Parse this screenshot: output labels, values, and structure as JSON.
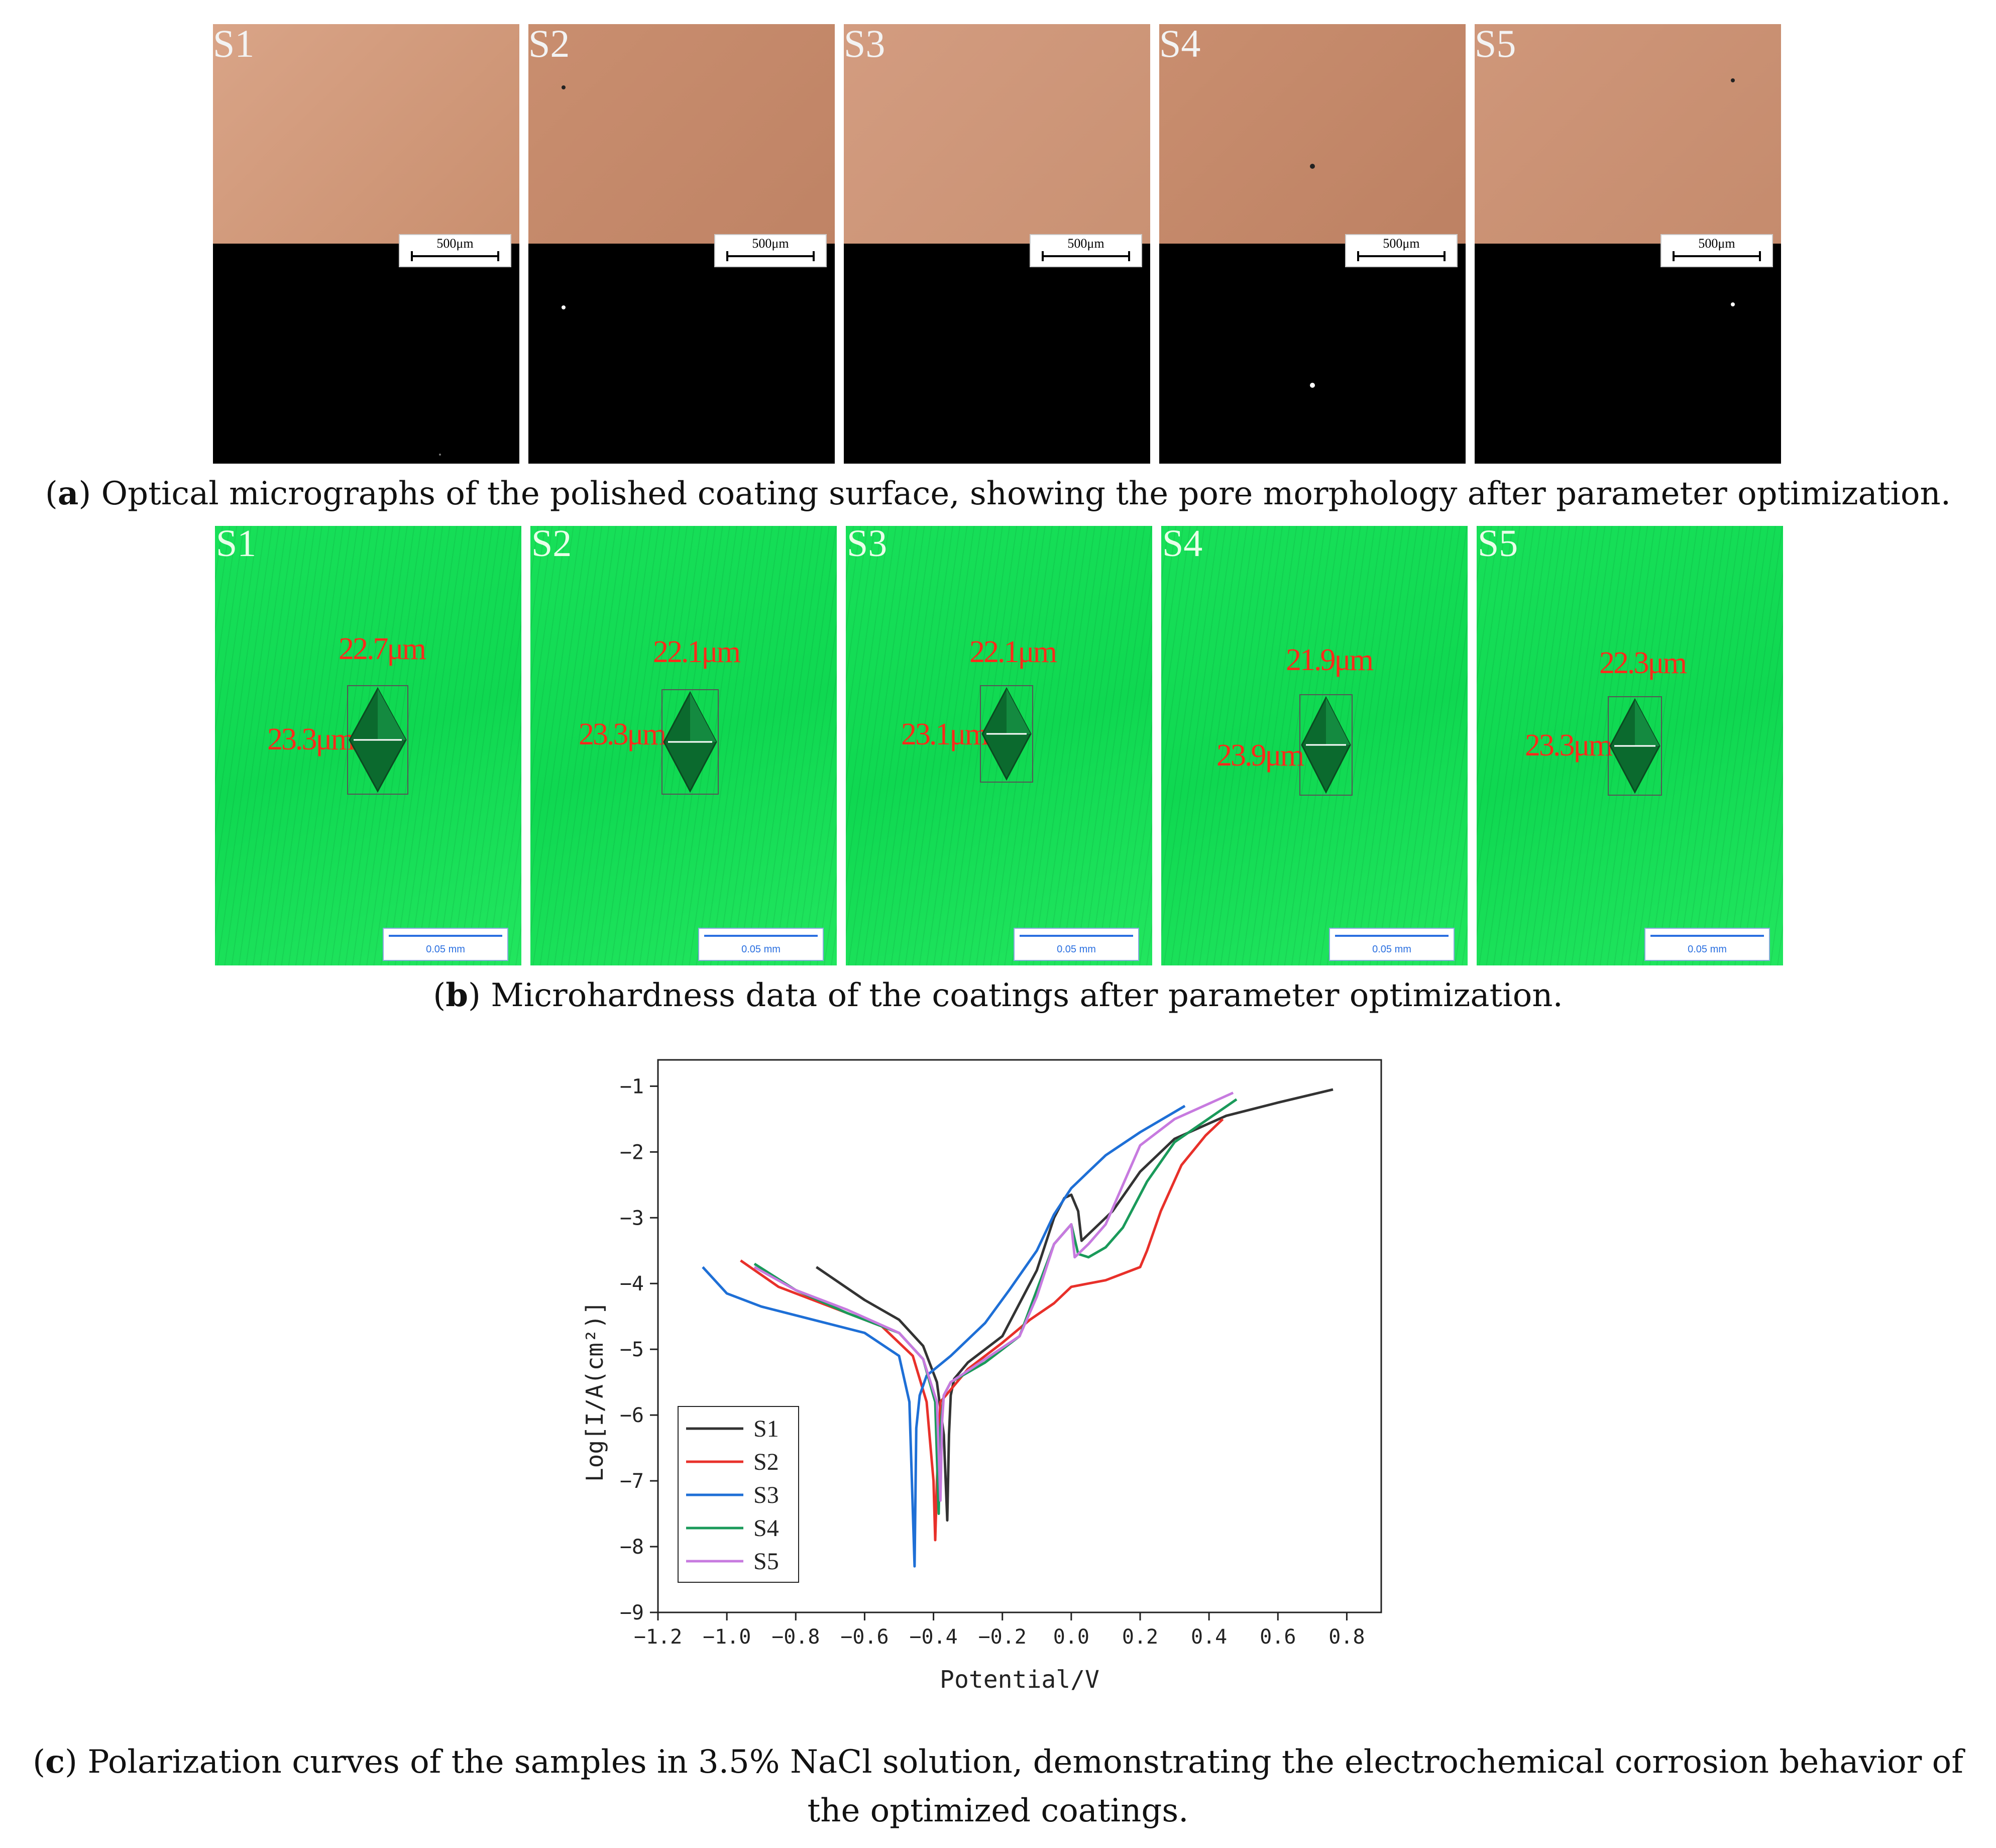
{
  "panel_a": {
    "tiles": [
      {
        "label": "S1",
        "scale": "500μm"
      },
      {
        "label": "S2",
        "scale": "500μm"
      },
      {
        "label": "S3",
        "scale": "500μm"
      },
      {
        "label": "S4",
        "scale": "500μm"
      },
      {
        "label": "S5",
        "scale": "500μm"
      }
    ],
    "caption_letter": "a",
    "caption_text": " Optical micrographs of the polished coating surface, showing the pore morphology after parameter optimization."
  },
  "panel_b": {
    "tiles": [
      {
        "label": "S1",
        "top": "22.7μm",
        "left": "23.3μm",
        "scale": "0.05 mm"
      },
      {
        "label": "S2",
        "top": "22.1μm",
        "left": "23.3μm",
        "scale": "0.05 mm"
      },
      {
        "label": "S3",
        "top": "22.1μm",
        "left": "23.1μm",
        "scale": "0.05 mm"
      },
      {
        "label": "S4",
        "top": "21.9μm",
        "left": "23.9μm",
        "scale": "0.05 mm"
      },
      {
        "label": "S5",
        "top": "22.3μm",
        "left": "23.3μm",
        "scale": "0.05 mm"
      }
    ],
    "caption_letter": "b",
    "caption_text": " Microhardness data of the coatings after parameter optimization."
  },
  "panel_c": {
    "caption_letter": "c",
    "caption_line1": " Polarization curves of the samples in 3.5% NaCl solution, demonstrating the electrochemical corrosion behavior of",
    "caption_line2": "the optimized coatings."
  },
  "chart_data": {
    "type": "line",
    "xlabel": "Potential/V",
    "ylabel": "Log[I/A(cm²)]",
    "xlim": [
      -1.2,
      0.9
    ],
    "ylim": [
      -9,
      -0.6
    ],
    "xticks": [
      -1.2,
      -1.0,
      -0.8,
      -0.6,
      -0.4,
      -0.2,
      0.0,
      0.2,
      0.4,
      0.6,
      0.8
    ],
    "xtick_labels": [
      "−1.2",
      "−1.0",
      "−0.8",
      "−0.6",
      "−0.4",
      "−0.2",
      "0.0",
      "0.2",
      "0.4",
      "0.6",
      "0.8"
    ],
    "yticks": [
      -9,
      -8,
      -7,
      -6,
      -5,
      -4,
      -3,
      -2,
      -1
    ],
    "ytick_labels": [
      "−9",
      "−8",
      "−7",
      "−6",
      "−5",
      "−4",
      "−3",
      "−2",
      "−1"
    ],
    "legend_position": "bottom-left",
    "series": [
      {
        "name": "S1",
        "color": "#333333",
        "x": [
          -0.74,
          -0.6,
          -0.5,
          -0.43,
          -0.39,
          -0.37,
          -0.36,
          -0.355,
          -0.35,
          -0.34,
          -0.3,
          -0.2,
          -0.1,
          -0.05,
          -0.02,
          0.0,
          0.02,
          0.03,
          0.06,
          0.12,
          0.2,
          0.3,
          0.45,
          0.6,
          0.76
        ],
        "y": [
          -3.75,
          -4.25,
          -4.55,
          -4.95,
          -5.5,
          -6.3,
          -7.6,
          -6.3,
          -5.7,
          -5.45,
          -5.2,
          -4.8,
          -3.8,
          -3.0,
          -2.7,
          -2.65,
          -2.9,
          -3.35,
          -3.2,
          -2.9,
          -2.3,
          -1.8,
          -1.45,
          -1.25,
          -1.05
        ]
      },
      {
        "name": "S2",
        "color": "#e8302a",
        "x": [
          -0.96,
          -0.85,
          -0.7,
          -0.55,
          -0.46,
          -0.42,
          -0.4,
          -0.395,
          -0.39,
          -0.38,
          -0.3,
          -0.2,
          -0.12,
          -0.05,
          -0.02,
          0.0,
          0.05,
          0.1,
          0.2,
          0.22,
          0.26,
          0.32,
          0.39,
          0.44
        ],
        "y": [
          -3.65,
          -4.05,
          -4.35,
          -4.65,
          -5.1,
          -5.8,
          -7.0,
          -7.9,
          -7.0,
          -5.8,
          -5.3,
          -4.9,
          -4.55,
          -4.3,
          -4.15,
          -4.05,
          -4.0,
          -3.95,
          -3.75,
          -3.5,
          -2.9,
          -2.2,
          -1.75,
          -1.5
        ]
      },
      {
        "name": "S3",
        "color": "#1e6fd6",
        "x": [
          -1.07,
          -1.0,
          -0.9,
          -0.75,
          -0.6,
          -0.5,
          -0.47,
          -0.455,
          -0.45,
          -0.44,
          -0.42,
          -0.35,
          -0.25,
          -0.18,
          -0.1,
          -0.05,
          0.0,
          0.05,
          0.1,
          0.2,
          0.33
        ],
        "y": [
          -3.75,
          -4.15,
          -4.35,
          -4.55,
          -4.75,
          -5.1,
          -5.8,
          -8.3,
          -6.2,
          -5.7,
          -5.4,
          -5.1,
          -4.6,
          -4.1,
          -3.5,
          -2.95,
          -2.55,
          -2.3,
          -2.05,
          -1.7,
          -1.3
        ]
      },
      {
        "name": "S4",
        "color": "#1a9a5a",
        "x": [
          -0.92,
          -0.8,
          -0.65,
          -0.5,
          -0.43,
          -0.395,
          -0.385,
          -0.38,
          -0.37,
          -0.35,
          -0.25,
          -0.15,
          -0.1,
          -0.05,
          0.0,
          0.02,
          0.05,
          0.1,
          0.15,
          0.22,
          0.3,
          0.48
        ],
        "y": [
          -3.7,
          -4.1,
          -4.45,
          -4.75,
          -5.15,
          -5.8,
          -7.5,
          -6.2,
          -5.7,
          -5.5,
          -5.2,
          -4.8,
          -4.1,
          -3.4,
          -3.1,
          -3.55,
          -3.6,
          -3.45,
          -3.15,
          -2.45,
          -1.85,
          -1.2
        ]
      },
      {
        "name": "S5",
        "color": "#c77adf",
        "x": [
          -0.92,
          -0.8,
          -0.65,
          -0.5,
          -0.43,
          -0.39,
          -0.38,
          -0.375,
          -0.37,
          -0.35,
          -0.25,
          -0.15,
          -0.1,
          -0.05,
          0.0,
          0.01,
          0.05,
          0.1,
          0.15,
          0.2,
          0.3,
          0.47
        ],
        "y": [
          -3.75,
          -4.1,
          -4.4,
          -4.75,
          -5.15,
          -5.8,
          -7.3,
          -6.1,
          -5.7,
          -5.5,
          -5.15,
          -4.8,
          -4.2,
          -3.4,
          -3.1,
          -3.6,
          -3.4,
          -3.1,
          -2.5,
          -1.9,
          -1.5,
          -1.1
        ]
      }
    ]
  }
}
